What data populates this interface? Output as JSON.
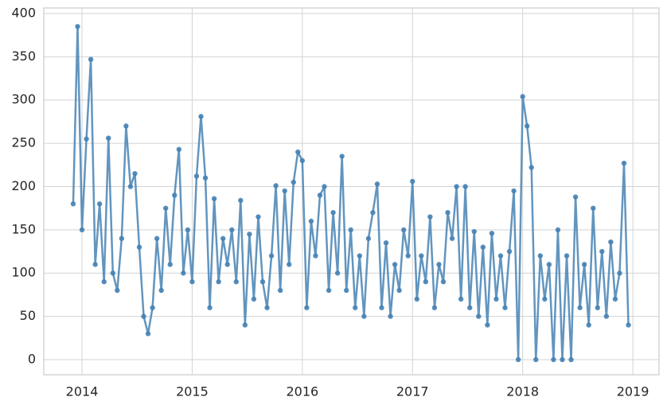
{
  "chart_data": {
    "type": "line",
    "color": "#4682b4",
    "grid": true,
    "x": [
      2013.92,
      2013.96,
      2014.0,
      2014.04,
      2014.08,
      2014.12,
      2014.16,
      2014.2,
      2014.24,
      2014.28,
      2014.32,
      2014.36,
      2014.4,
      2014.44,
      2014.48,
      2014.52,
      2014.56,
      2014.6,
      2014.64,
      2014.68,
      2014.72,
      2014.76,
      2014.8,
      2014.84,
      2014.88,
      2014.92,
      2014.96,
      2015.0,
      2015.04,
      2015.08,
      2015.12,
      2015.16,
      2015.2,
      2015.24,
      2015.28,
      2015.32,
      2015.36,
      2015.4,
      2015.44,
      2015.48,
      2015.52,
      2015.56,
      2015.6,
      2015.64,
      2015.68,
      2015.72,
      2015.76,
      2015.8,
      2015.84,
      2015.88,
      2015.92,
      2015.96,
      2016.0,
      2016.04,
      2016.08,
      2016.12,
      2016.16,
      2016.2,
      2016.24,
      2016.28,
      2016.32,
      2016.36,
      2016.4,
      2016.44,
      2016.48,
      2016.52,
      2016.56,
      2016.6,
      2016.64,
      2016.68,
      2016.72,
      2016.76,
      2016.8,
      2016.84,
      2016.88,
      2016.92,
      2016.96,
      2017.0,
      2017.04,
      2017.08,
      2017.12,
      2017.16,
      2017.2,
      2017.24,
      2017.28,
      2017.32,
      2017.36,
      2017.4,
      2017.44,
      2017.48,
      2017.52,
      2017.56,
      2017.6,
      2017.64,
      2017.68,
      2017.72,
      2017.76,
      2017.8,
      2017.84,
      2017.88,
      2017.92,
      2017.96,
      2018.0,
      2018.04,
      2018.08,
      2018.12,
      2018.16,
      2018.2,
      2018.24,
      2018.28,
      2018.32,
      2018.36,
      2018.4,
      2018.44,
      2018.48,
      2018.52,
      2018.56,
      2018.6,
      2018.64,
      2018.68,
      2018.72,
      2018.76,
      2018.8,
      2018.84,
      2018.88,
      2018.92,
      2018.96
    ],
    "values": [
      180,
      385,
      150,
      255,
      347,
      110,
      180,
      90,
      256,
      100,
      80,
      140,
      270,
      200,
      215,
      130,
      50,
      30,
      60,
      140,
      80,
      175,
      110,
      190,
      243,
      100,
      150,
      90,
      212,
      281,
      210,
      60,
      186,
      90,
      140,
      110,
      150,
      90,
      184,
      40,
      145,
      70,
      165,
      90,
      60,
      120,
      201,
      80,
      195,
      110,
      205,
      240,
      230,
      60,
      160,
      120,
      190,
      200,
      80,
      170,
      100,
      235,
      80,
      150,
      60,
      120,
      50,
      140,
      170,
      203,
      60,
      135,
      50,
      110,
      80,
      150,
      120,
      206,
      70,
      120,
      90,
      165,
      60,
      110,
      90,
      170,
      140,
      200,
      70,
      200,
      60,
      148,
      50,
      130,
      40,
      146,
      70,
      120,
      60,
      125,
      195,
      0,
      304,
      270,
      222,
      0,
      120,
      70,
      110,
      0,
      150,
      0,
      120,
      0,
      188,
      60,
      110,
      40,
      175,
      60,
      125,
      50,
      136,
      70,
      100,
      227,
      40
    ],
    "xlim": [
      2013.653,
      2019.238
    ],
    "xticks": [
      2014,
      2015,
      2016,
      2017,
      2018,
      2019
    ],
    "ylim": [
      -17.5,
      406.4
    ],
    "yticks": [
      0,
      50,
      100,
      150,
      200,
      250,
      300,
      350,
      400
    ]
  }
}
